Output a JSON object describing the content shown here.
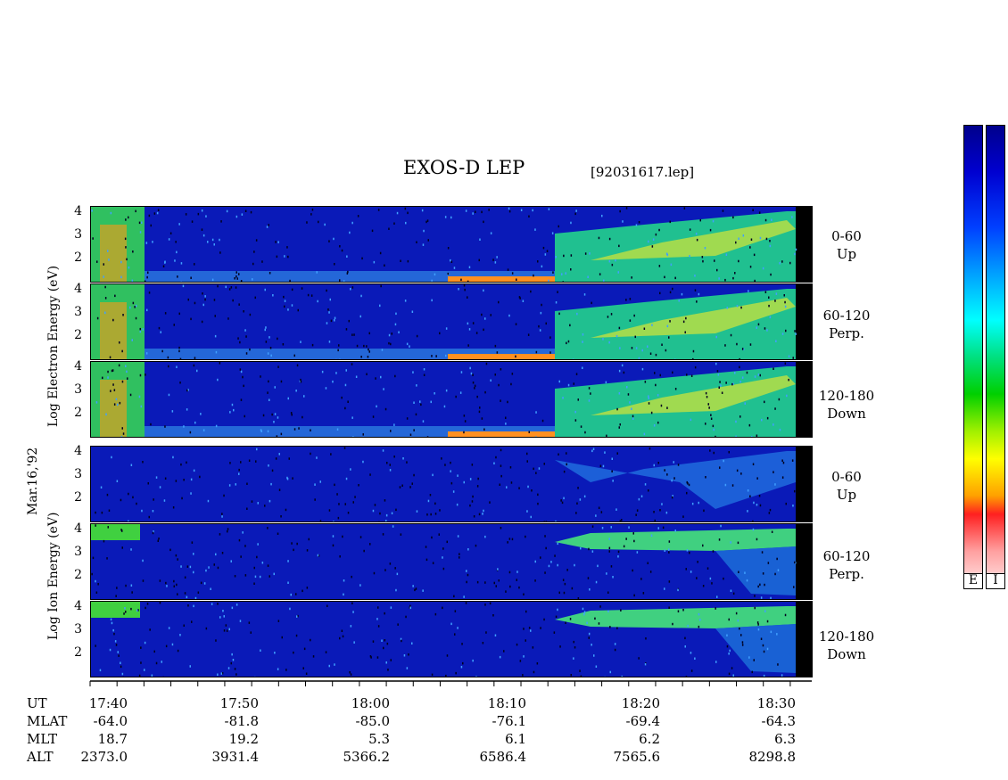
{
  "header": {
    "title": "EXOS-D LEP",
    "filename": "[92031617.lep]"
  },
  "date_label": "Mar.16,'92",
  "groups": [
    {
      "id": "electron",
      "ylabel": "Log Electron Energy (eV)"
    },
    {
      "id": "ion",
      "ylabel": "Log Ion Energy (eV)"
    }
  ],
  "panel_labels": [
    {
      "range": "0-60",
      "dir": "Up"
    },
    {
      "range": "60-120",
      "dir": "Perp."
    },
    {
      "range": "120-180",
      "dir": "Down"
    }
  ],
  "ytick_labels": [
    "4",
    "3",
    "2"
  ],
  "colorbars": {
    "labels": [
      "E",
      "I"
    ]
  },
  "table": {
    "row_labels": [
      "UT",
      "MLAT",
      "MLT",
      "ALT"
    ],
    "columns": [
      {
        "UT": "17:40",
        "MLAT": "-64.0",
        "MLT": "18.7",
        "ALT": "2373.0"
      },
      {
        "UT": "17:50",
        "MLAT": "-81.8",
        "MLT": "19.2",
        "ALT": "3931.4"
      },
      {
        "UT": "18:00",
        "MLAT": "-85.0",
        "MLT": "5.3",
        "ALT": "5366.2"
      },
      {
        "UT": "18:10",
        "MLAT": "-76.1",
        "MLT": "6.1",
        "ALT": "6586.4"
      },
      {
        "UT": "18:20",
        "MLAT": "-69.4",
        "MLT": "6.2",
        "ALT": "7565.6"
      },
      {
        "UT": "18:30",
        "MLAT": "-64.3",
        "MLT": "6.3",
        "ALT": "8298.8"
      }
    ]
  },
  "chart_data": {
    "type": "heatmap",
    "title": "EXOS-D LEP",
    "x_axis": {
      "label": "UT",
      "ticks": [
        "17:40",
        "17:50",
        "18:00",
        "18:10",
        "18:20",
        "18:30"
      ],
      "range": [
        "17:39",
        "18:32"
      ]
    },
    "y_axis": {
      "ylim": [
        1,
        4.2
      ],
      "ticks": [
        4,
        3,
        2
      ]
    },
    "panels": [
      {
        "species": "Electron",
        "pitch_angle": "0-60",
        "direction": "Up"
      },
      {
        "species": "Electron",
        "pitch_angle": "60-120",
        "direction": "Perp."
      },
      {
        "species": "Electron",
        "pitch_angle": "120-180",
        "direction": "Down"
      },
      {
        "species": "Ion",
        "pitch_angle": "0-60",
        "direction": "Up"
      },
      {
        "species": "Ion",
        "pitch_angle": "60-120",
        "direction": "Perp."
      },
      {
        "species": "Ion",
        "pitch_angle": "120-180",
        "direction": "Down"
      }
    ],
    "colorbar_labels": [
      "E",
      "I"
    ],
    "colors": {
      "low": "#0000a0",
      "mid": "#00ffff",
      "green": "#00dd00",
      "high": "#ffff00",
      "max": "#ff0000",
      "top": "#ffffff"
    }
  }
}
